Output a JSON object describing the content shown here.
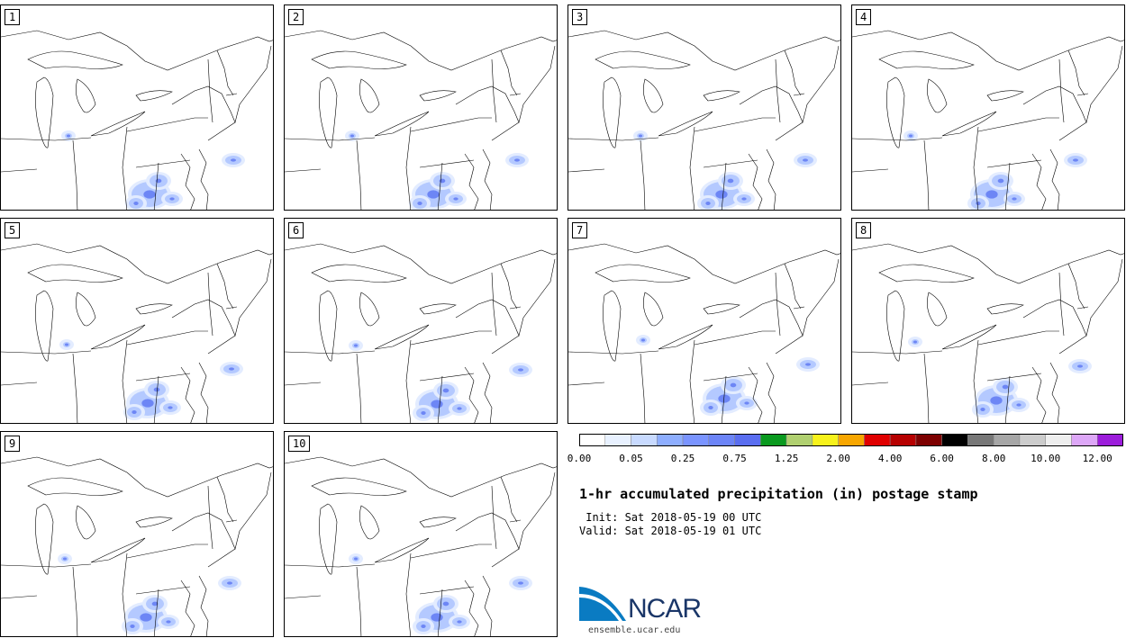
{
  "panels": [
    "1",
    "2",
    "3",
    "4",
    "5",
    "6",
    "7",
    "8",
    "9",
    "10"
  ],
  "colorbar": {
    "colors": [
      "#ffffff",
      "#e8f1ff",
      "#c8daff",
      "#8eaeff",
      "#7a94ff",
      "#6c84f7",
      "#5a6ef0",
      "#0a9a1f",
      "#b0d070",
      "#f7f21b",
      "#f7a600",
      "#e00000",
      "#b60000",
      "#7d0000",
      "#000000",
      "#777777",
      "#a6a6a6",
      "#cccccc",
      "#eeeeee",
      "#dda7f7",
      "#9c1ddb"
    ],
    "tick_labels": [
      "0.00",
      "0.05",
      "0.25",
      "0.75",
      "1.25",
      "2.00",
      "4.00",
      "6.00",
      "8.00",
      "10.00",
      "12.00"
    ]
  },
  "title": "1-hr accumulated precipitation (in) postage stamp",
  "init": " Init: Sat 2018-05-19 00 UTC",
  "valid": "Valid: Sat 2018-05-19 01 UTC",
  "logo": {
    "text": "NCAR",
    "site": "ensemble.ucar.edu"
  }
}
